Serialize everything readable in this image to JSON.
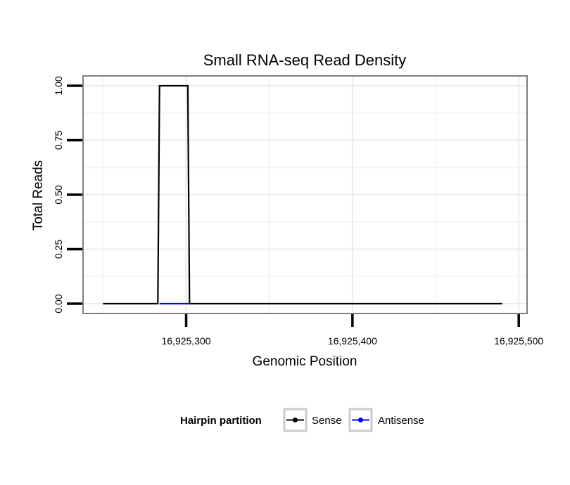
{
  "chart_data": {
    "type": "line",
    "title": "Small RNA-seq Read Density",
    "xlabel": "Genomic Position",
    "ylabel": "Total Reads",
    "xlim": [
      16925238,
      16925505
    ],
    "ylim": [
      -0.045,
      1.045
    ],
    "x_ticks": [
      16925300,
      16925400,
      16925500
    ],
    "x_tick_labels": [
      "16,925,300",
      "16,925,400",
      "16,925,500"
    ],
    "y_ticks": [
      0,
      0.25,
      0.5,
      0.75,
      1.0
    ],
    "y_tick_labels": [
      "0.00",
      "0.25",
      "0.50",
      "0.75",
      "1.00"
    ],
    "grid": true,
    "legend_position": "bottom",
    "legend_title": "Hairpin partition",
    "series": [
      {
        "name": "Sense",
        "color": "#000000",
        "points": [
          [
            16925250,
            0
          ],
          [
            16925283,
            0
          ],
          [
            16925284,
            1
          ],
          [
            16925301,
            1
          ],
          [
            16925302,
            0
          ],
          [
            16925490,
            0
          ]
        ]
      },
      {
        "name": "Antisense",
        "color": "#0000ff",
        "points": [
          [
            16925284,
            0
          ],
          [
            16925302,
            0
          ]
        ]
      }
    ]
  }
}
